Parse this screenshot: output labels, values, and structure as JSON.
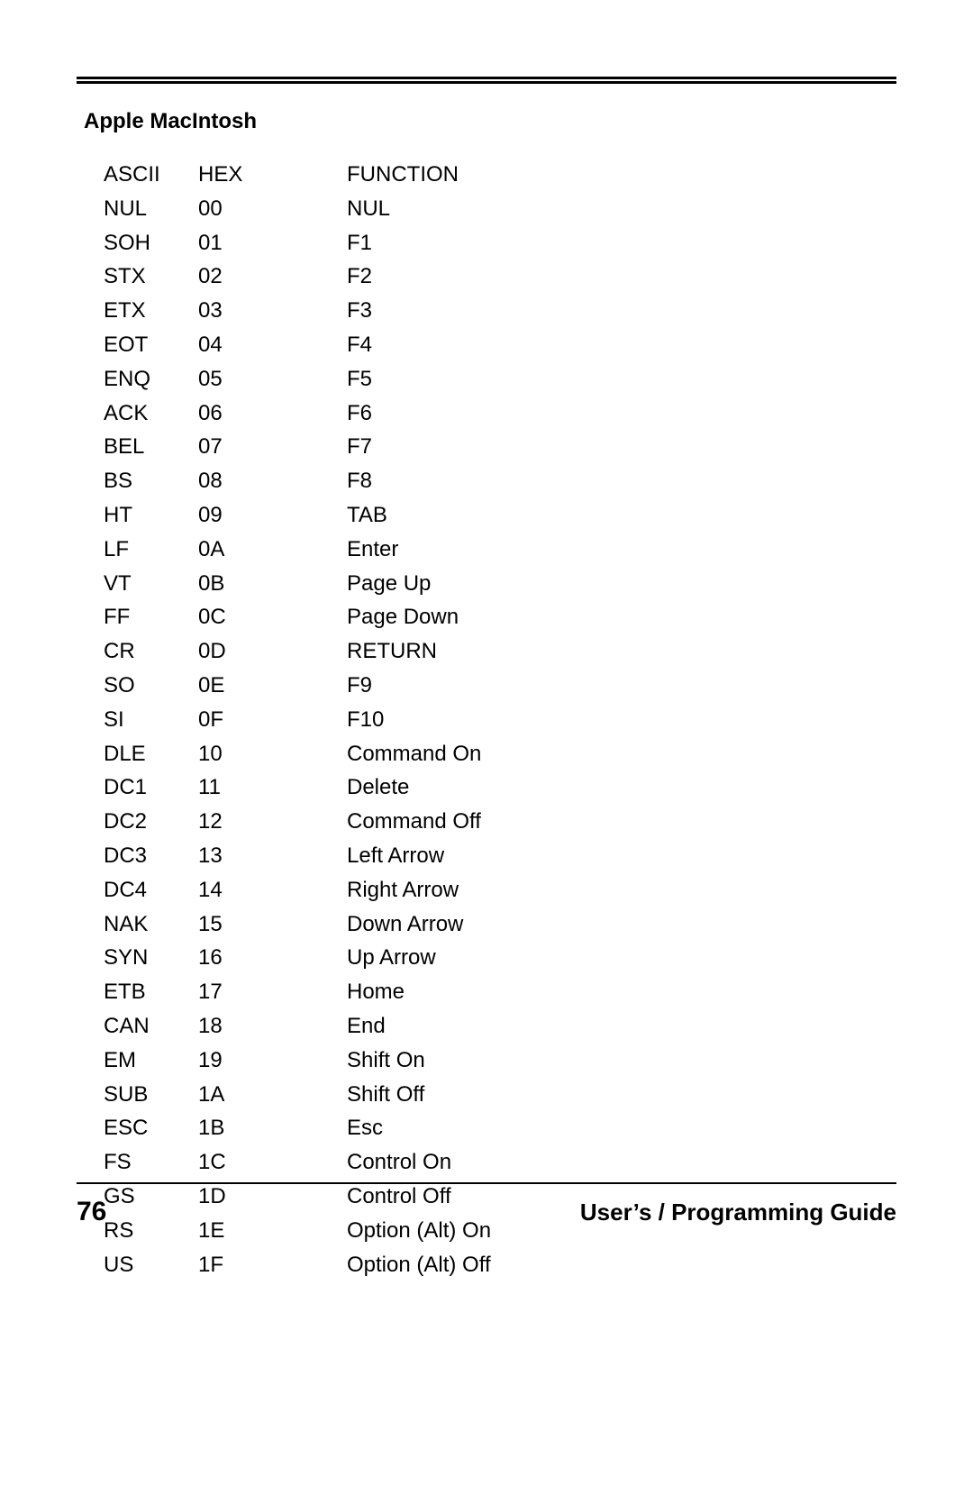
{
  "section_title": "Apple MacIntosh",
  "headers": {
    "ascii": "ASCII",
    "hex": "HEX",
    "func": "FUNCTION"
  },
  "rows": [
    {
      "ascii": "NUL",
      "hex": "00",
      "func": "NUL"
    },
    {
      "ascii": "SOH",
      "hex": "01",
      "func": "F1"
    },
    {
      "ascii": "STX",
      "hex": "02",
      "func": "F2"
    },
    {
      "ascii": "ETX",
      "hex": "03",
      "func": "F3"
    },
    {
      "ascii": "EOT",
      "hex": "04",
      "func": "F4"
    },
    {
      "ascii": "ENQ",
      "hex": "05",
      "func": "F5"
    },
    {
      "ascii": "ACK",
      "hex": "06",
      "func": "F6"
    },
    {
      "ascii": "BEL",
      "hex": "07",
      "func": "F7"
    },
    {
      "ascii": "BS",
      "hex": "08",
      "func": "F8"
    },
    {
      "ascii": "HT",
      "hex": "09",
      "func": "TAB"
    },
    {
      "ascii": "LF",
      "hex": "0A",
      "func": "Enter"
    },
    {
      "ascii": "VT",
      "hex": "0B",
      "func": "Page Up"
    },
    {
      "ascii": "FF",
      "hex": "0C",
      "func": "Page Down"
    },
    {
      "ascii": "CR",
      "hex": "0D",
      "func": "RETURN"
    },
    {
      "ascii": "SO",
      "hex": "0E",
      "func": "F9"
    },
    {
      "ascii": "SI",
      "hex": "0F",
      "func": "F10"
    },
    {
      "ascii": "DLE",
      "hex": "10",
      "func": "Command On"
    },
    {
      "ascii": "DC1",
      "hex": "11",
      "func": "Delete"
    },
    {
      "ascii": "DC2",
      "hex": "12",
      "func": "Command Off"
    },
    {
      "ascii": "DC3",
      "hex": "13",
      "func": "Left Arrow"
    },
    {
      "ascii": "DC4",
      "hex": "14",
      "func": "Right Arrow"
    },
    {
      "ascii": "NAK",
      "hex": "15",
      "func": "Down Arrow"
    },
    {
      "ascii": "SYN",
      "hex": "16",
      "func": "Up Arrow"
    },
    {
      "ascii": "ETB",
      "hex": "17",
      "func": "Home"
    },
    {
      "ascii": "CAN",
      "hex": "18",
      "func": "End"
    },
    {
      "ascii": "EM",
      "hex": "19",
      "func": "Shift On"
    },
    {
      "ascii": "SUB",
      "hex": "1A",
      "func": "Shift Off"
    },
    {
      "ascii": "ESC",
      "hex": "1B",
      "func": "Esc"
    },
    {
      "ascii": "FS",
      "hex": "1C",
      "func": "Control On"
    },
    {
      "ascii": "GS",
      "hex": "1D",
      "func": "Control Off"
    },
    {
      "ascii": "RS",
      "hex": "1E",
      "func": "Option (Alt) On"
    },
    {
      "ascii": "US",
      "hex": "1F",
      "func": "Option (Alt) Off"
    }
  ],
  "footer": {
    "page_number": "76",
    "guide": "User’s / Programming Guide"
  }
}
